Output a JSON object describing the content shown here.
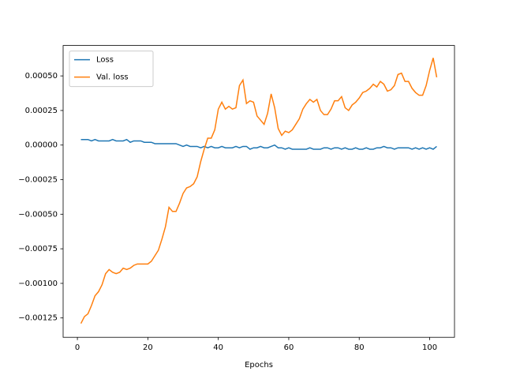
{
  "chart_data": {
    "type": "line",
    "x_label": "Epochs",
    "x": [
      1,
      2,
      3,
      4,
      5,
      6,
      7,
      8,
      9,
      10,
      11,
      12,
      13,
      14,
      15,
      16,
      17,
      18,
      19,
      20,
      21,
      22,
      23,
      24,
      25,
      26,
      27,
      28,
      29,
      30,
      31,
      32,
      33,
      34,
      35,
      36,
      37,
      38,
      39,
      40,
      41,
      42,
      43,
      44,
      45,
      46,
      47,
      48,
      49,
      50,
      51,
      52,
      53,
      54,
      55,
      56,
      57,
      58,
      59,
      60,
      61,
      62,
      63,
      64,
      65,
      66,
      67,
      68,
      69,
      70,
      71,
      72,
      73,
      74,
      75,
      76,
      77,
      78,
      79,
      80,
      81,
      82,
      83,
      84,
      85,
      86,
      87,
      88,
      89,
      90,
      91,
      92,
      93,
      94,
      95,
      96,
      97,
      98,
      99,
      100,
      101,
      102
    ],
    "series": [
      {
        "name": "Loss",
        "color": "#1f77b4",
        "values": [
          4e-05,
          4e-05,
          4e-05,
          3e-05,
          4e-05,
          3e-05,
          3e-05,
          3e-05,
          3e-05,
          4e-05,
          3e-05,
          3e-05,
          3e-05,
          4e-05,
          2e-05,
          3e-05,
          3e-05,
          3e-05,
          2e-05,
          2e-05,
          2e-05,
          1e-05,
          1e-05,
          1e-05,
          1e-05,
          1e-05,
          1e-05,
          1e-05,
          0,
          -1e-05,
          0,
          -1e-05,
          -1e-05,
          -1e-05,
          -2e-05,
          -1e-05,
          -2e-05,
          -1e-05,
          -2e-05,
          -2e-05,
          -1e-05,
          -2e-05,
          -2e-05,
          -2e-05,
          -1e-05,
          -2e-05,
          -1e-05,
          -1e-05,
          -3e-05,
          -2e-05,
          -2e-05,
          -1e-05,
          -2e-05,
          -2e-05,
          -1e-05,
          0,
          -2e-05,
          -2e-05,
          -3e-05,
          -2e-05,
          -3e-05,
          -3e-05,
          -3e-05,
          -3e-05,
          -3e-05,
          -2e-05,
          -3e-05,
          -3e-05,
          -3e-05,
          -2e-05,
          -2e-05,
          -3e-05,
          -2e-05,
          -2e-05,
          -3e-05,
          -2e-05,
          -3e-05,
          -3e-05,
          -2e-05,
          -3e-05,
          -3e-05,
          -2e-05,
          -3e-05,
          -3e-05,
          -2e-05,
          -2e-05,
          -1e-05,
          -2e-05,
          -2e-05,
          -3e-05,
          -2e-05,
          -2e-05,
          -2e-05,
          -2e-05,
          -3e-05,
          -2e-05,
          -3e-05,
          -2e-05,
          -3e-05,
          -2e-05,
          -3e-05,
          -1e-05
        ]
      },
      {
        "name": "Val. loss",
        "color": "#ff7f0e",
        "values": [
          -0.00129,
          -0.00124,
          -0.00122,
          -0.00116,
          -0.00109,
          -0.00106,
          -0.00101,
          -0.00093,
          -0.0009,
          -0.00092,
          -0.00093,
          -0.00092,
          -0.00089,
          -0.0009,
          -0.00089,
          -0.00087,
          -0.00086,
          -0.00086,
          -0.00086,
          -0.00086,
          -0.00084,
          -0.0008,
          -0.00076,
          -0.00068,
          -0.00059,
          -0.00045,
          -0.00048,
          -0.00048,
          -0.00042,
          -0.00035,
          -0.00031,
          -0.0003,
          -0.00028,
          -0.00023,
          -0.00012,
          -3e-05,
          5e-05,
          5e-05,
          0.00011,
          0.00026,
          0.00031,
          0.00026,
          0.00028,
          0.00026,
          0.00027,
          0.00043,
          0.00047,
          0.0003,
          0.00032,
          0.00031,
          0.00021,
          0.00018,
          0.00015,
          0.00023,
          0.00037,
          0.00027,
          0.00012,
          7e-05,
          0.0001,
          9e-05,
          0.00011,
          0.00015,
          0.00019,
          0.00026,
          0.0003,
          0.00033,
          0.00031,
          0.00033,
          0.00025,
          0.00022,
          0.00022,
          0.00026,
          0.00032,
          0.00032,
          0.00035,
          0.00027,
          0.00025,
          0.00029,
          0.00031,
          0.00034,
          0.00038,
          0.00039,
          0.00041,
          0.00044,
          0.00042,
          0.00046,
          0.00044,
          0.00039,
          0.0004,
          0.00043,
          0.00051,
          0.00052,
          0.00046,
          0.00046,
          0.00041,
          0.00038,
          0.00036,
          0.00036,
          0.00043,
          0.00054,
          0.00063,
          0.00049
        ]
      }
    ],
    "xlim": [
      -4.05,
      107.05
    ],
    "xticks": [
      0,
      20,
      40,
      60,
      80,
      100
    ],
    "ylim": [
      -0.00139,
      0.00072
    ],
    "yticks": [
      {
        "value": -0.00125,
        "label": "−0.00125"
      },
      {
        "value": -0.001,
        "label": "−0.00100"
      },
      {
        "value": -0.00075,
        "label": "−0.00075"
      },
      {
        "value": -0.0005,
        "label": "−0.00050"
      },
      {
        "value": -0.00025,
        "label": "−0.00025"
      },
      {
        "value": 0,
        "label": "0.00000"
      },
      {
        "value": 0.00025,
        "label": "0.00025"
      },
      {
        "value": 0.0005,
        "label": "0.00050"
      }
    ],
    "legend": "upper left"
  }
}
